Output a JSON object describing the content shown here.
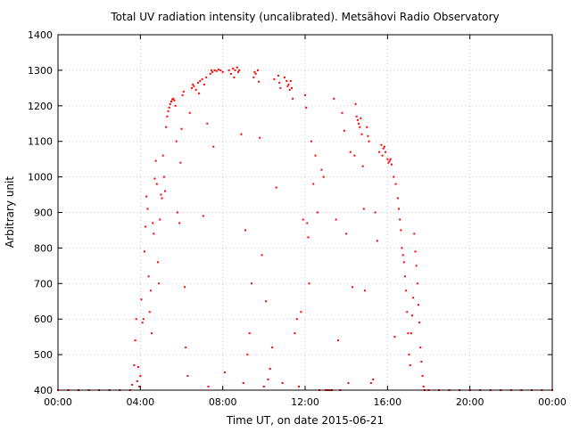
{
  "chart_data": {
    "type": "scatter",
    "title": "Total UV radiation intensity (uncalibrated). Metsähovi Radio Observatory",
    "xlabel": "Time UT, on date 2015-06-21",
    "ylabel": "Arbitrary unit",
    "xlim": [
      0,
      24
    ],
    "ylim": [
      400,
      1400
    ],
    "x_unit": "hours UT",
    "x_ticks": [
      {
        "value": 0,
        "label": "00:00"
      },
      {
        "value": 4,
        "label": "04:00"
      },
      {
        "value": 8,
        "label": "08:00"
      },
      {
        "value": 12,
        "label": "12:00"
      },
      {
        "value": 16,
        "label": "16:00"
      },
      {
        "value": 20,
        "label": "20:00"
      },
      {
        "value": 24,
        "label": "00:00"
      }
    ],
    "y_ticks": [
      {
        "value": 400,
        "label": "400"
      },
      {
        "value": 500,
        "label": "500"
      },
      {
        "value": 600,
        "label": "600"
      },
      {
        "value": 700,
        "label": "700"
      },
      {
        "value": 800,
        "label": "800"
      },
      {
        "value": 900,
        "label": "900"
      },
      {
        "value": 1000,
        "label": "1000"
      },
      {
        "value": 1100,
        "label": "1100"
      },
      {
        "value": 1200,
        "label": "1200"
      },
      {
        "value": 1300,
        "label": "1300"
      },
      {
        "value": 1400,
        "label": "1400"
      }
    ],
    "grid": true,
    "marker_color": "#ff0000",
    "series": [
      {
        "points": [
          [
            0.0,
            400
          ],
          [
            0.5,
            400
          ],
          [
            1.0,
            400
          ],
          [
            1.5,
            400
          ],
          [
            2.0,
            400
          ],
          [
            2.5,
            400
          ],
          [
            3.0,
            400
          ],
          [
            3.5,
            400
          ],
          [
            3.6,
            415
          ],
          [
            3.7,
            470
          ],
          [
            3.75,
            540
          ],
          [
            3.8,
            600
          ],
          [
            3.85,
            425
          ],
          [
            3.9,
            465
          ],
          [
            3.95,
            410
          ],
          [
            4.0,
            440
          ],
          [
            4.05,
            655
          ],
          [
            4.1,
            590
          ],
          [
            4.15,
            600
          ],
          [
            4.2,
            790
          ],
          [
            4.25,
            860
          ],
          [
            4.3,
            945
          ],
          [
            4.35,
            910
          ],
          [
            4.4,
            720
          ],
          [
            4.45,
            620
          ],
          [
            4.5,
            680
          ],
          [
            4.55,
            560
          ],
          [
            4.6,
            870
          ],
          [
            4.65,
            840
          ],
          [
            4.7,
            995
          ],
          [
            4.75,
            1045
          ],
          [
            4.8,
            980
          ],
          [
            4.85,
            760
          ],
          [
            4.9,
            700
          ],
          [
            4.95,
            880
          ],
          [
            5.0,
            950
          ],
          [
            5.05,
            940
          ],
          [
            5.1,
            1060
          ],
          [
            5.15,
            1000
          ],
          [
            5.2,
            960
          ],
          [
            5.25,
            1140
          ],
          [
            5.3,
            1170
          ],
          [
            5.35,
            1185
          ],
          [
            5.4,
            1195
          ],
          [
            5.45,
            1205
          ],
          [
            5.5,
            1212
          ],
          [
            5.55,
            1218
          ],
          [
            5.6,
            1220
          ],
          [
            5.65,
            1215
          ],
          [
            5.7,
            1200
          ],
          [
            5.75,
            1100
          ],
          [
            5.8,
            900
          ],
          [
            5.9,
            870
          ],
          [
            5.95,
            1040
          ],
          [
            6.0,
            1135
          ],
          [
            6.05,
            1230
          ],
          [
            6.1,
            1240
          ],
          [
            6.15,
            690
          ],
          [
            6.2,
            520
          ],
          [
            6.3,
            440
          ],
          [
            6.4,
            1180
          ],
          [
            6.5,
            1250
          ],
          [
            6.55,
            1260
          ],
          [
            6.6,
            1255
          ],
          [
            6.7,
            1245
          ],
          [
            6.8,
            1265
          ],
          [
            6.85,
            1235
          ],
          [
            6.9,
            1270
          ],
          [
            7.0,
            1275
          ],
          [
            7.05,
            890
          ],
          [
            7.1,
            1260
          ],
          [
            7.2,
            1280
          ],
          [
            7.25,
            1150
          ],
          [
            7.3,
            410
          ],
          [
            7.4,
            1290
          ],
          [
            7.45,
            1300
          ],
          [
            7.5,
            1295
          ],
          [
            7.55,
            1085
          ],
          [
            7.6,
            1300
          ],
          [
            7.7,
            1298
          ],
          [
            7.8,
            1302
          ],
          [
            7.9,
            1300
          ],
          [
            8.0,
            1295
          ],
          [
            8.1,
            450
          ],
          [
            8.3,
            1300
          ],
          [
            8.4,
            1290
          ],
          [
            8.5,
            1305
          ],
          [
            8.55,
            1280
          ],
          [
            8.6,
            1300
          ],
          [
            8.7,
            1308
          ],
          [
            8.75,
            1295
          ],
          [
            8.8,
            1300
          ],
          [
            8.9,
            1120
          ],
          [
            9.0,
            420
          ],
          [
            9.1,
            850
          ],
          [
            9.2,
            500
          ],
          [
            9.3,
            560
          ],
          [
            9.4,
            700
          ],
          [
            9.5,
            1280
          ],
          [
            9.55,
            1295
          ],
          [
            9.6,
            1290
          ],
          [
            9.7,
            1300
          ],
          [
            9.75,
            1268
          ],
          [
            9.8,
            1110
          ],
          [
            9.9,
            780
          ],
          [
            10.0,
            410
          ],
          [
            10.1,
            650
          ],
          [
            10.2,
            430
          ],
          [
            10.3,
            460
          ],
          [
            10.4,
            520
          ],
          [
            10.5,
            1275
          ],
          [
            10.6,
            970
          ],
          [
            10.7,
            1285
          ],
          [
            10.75,
            1265
          ],
          [
            10.8,
            1250
          ],
          [
            10.9,
            420
          ],
          [
            11.0,
            1280
          ],
          [
            11.1,
            1270
          ],
          [
            11.15,
            1255
          ],
          [
            11.2,
            1260
          ],
          [
            11.25,
            1245
          ],
          [
            11.3,
            1270
          ],
          [
            11.35,
            1250
          ],
          [
            11.4,
            1220
          ],
          [
            11.5,
            560
          ],
          [
            11.6,
            600
          ],
          [
            11.7,
            410
          ],
          [
            11.8,
            620
          ],
          [
            11.9,
            880
          ],
          [
            12.0,
            1230
          ],
          [
            12.05,
            1195
          ],
          [
            12.1,
            870
          ],
          [
            12.15,
            830
          ],
          [
            12.2,
            700
          ],
          [
            12.3,
            1100
          ],
          [
            12.4,
            980
          ],
          [
            12.5,
            1060
          ],
          [
            12.6,
            900
          ],
          [
            12.7,
            400
          ],
          [
            12.8,
            1020
          ],
          [
            12.9,
            1000
          ],
          [
            13.0,
            400
          ],
          [
            13.1,
            400
          ],
          [
            13.2,
            400
          ],
          [
            13.3,
            400
          ],
          [
            13.4,
            1220
          ],
          [
            13.5,
            880
          ],
          [
            13.6,
            540
          ],
          [
            13.7,
            400
          ],
          [
            13.8,
            1180
          ],
          [
            13.9,
            1130
          ],
          [
            14.0,
            840
          ],
          [
            14.1,
            420
          ],
          [
            14.2,
            1070
          ],
          [
            14.3,
            690
          ],
          [
            14.4,
            1060
          ],
          [
            14.45,
            1205
          ],
          [
            14.5,
            1170
          ],
          [
            14.55,
            1160
          ],
          [
            14.6,
            1150
          ],
          [
            14.65,
            1140
          ],
          [
            14.7,
            1165
          ],
          [
            14.75,
            1120
          ],
          [
            14.8,
            1030
          ],
          [
            14.85,
            910
          ],
          [
            14.9,
            680
          ],
          [
            15.0,
            1140
          ],
          [
            15.05,
            1115
          ],
          [
            15.1,
            1100
          ],
          [
            15.2,
            420
          ],
          [
            15.3,
            430
          ],
          [
            15.4,
            900
          ],
          [
            15.5,
            820
          ],
          [
            15.6,
            1070
          ],
          [
            15.7,
            1090
          ],
          [
            15.75,
            1060
          ],
          [
            15.8,
            1080
          ],
          [
            15.85,
            1085
          ],
          [
            15.9,
            1070
          ],
          [
            16.0,
            1050
          ],
          [
            16.05,
            1040
          ],
          [
            16.1,
            1045
          ],
          [
            16.15,
            1050
          ],
          [
            16.2,
            1035
          ],
          [
            16.3,
            1000
          ],
          [
            16.35,
            550
          ],
          [
            16.4,
            980
          ],
          [
            16.5,
            940
          ],
          [
            16.55,
            910
          ],
          [
            16.6,
            880
          ],
          [
            16.65,
            850
          ],
          [
            16.7,
            800
          ],
          [
            16.75,
            780
          ],
          [
            16.8,
            760
          ],
          [
            16.85,
            720
          ],
          [
            16.9,
            680
          ],
          [
            16.95,
            620
          ],
          [
            17.0,
            560
          ],
          [
            17.05,
            500
          ],
          [
            17.1,
            470
          ],
          [
            17.15,
            560
          ],
          [
            17.2,
            610
          ],
          [
            17.25,
            660
          ],
          [
            17.3,
            840
          ],
          [
            17.35,
            790
          ],
          [
            17.4,
            750
          ],
          [
            17.45,
            700
          ],
          [
            17.5,
            640
          ],
          [
            17.55,
            590
          ],
          [
            17.6,
            520
          ],
          [
            17.65,
            480
          ],
          [
            17.7,
            440
          ],
          [
            17.75,
            410
          ],
          [
            17.8,
            400
          ],
          [
            18.0,
            400
          ],
          [
            18.5,
            400
          ],
          [
            19.0,
            400
          ],
          [
            19.5,
            400
          ],
          [
            20.0,
            400
          ],
          [
            20.5,
            400
          ],
          [
            21.0,
            400
          ],
          [
            21.5,
            400
          ],
          [
            22.0,
            400
          ],
          [
            22.5,
            400
          ],
          [
            23.0,
            400
          ],
          [
            23.5,
            400
          ],
          [
            24.0,
            400
          ]
        ]
      }
    ]
  }
}
